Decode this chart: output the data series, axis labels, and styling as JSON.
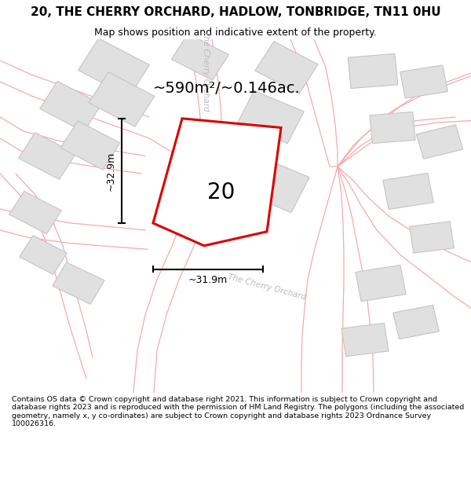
{
  "title": "20, THE CHERRY ORCHARD, HADLOW, TONBRIDGE, TN11 0HU",
  "subtitle": "Map shows position and indicative extent of the property.",
  "footer": "Contains OS data © Crown copyright and database right 2021. This information is subject to Crown copyright and database rights 2023 and is reproduced with the permission of HM Land Registry. The polygons (including the associated geometry, namely x, y co-ordinates) are subject to Crown copyright and database rights 2023 Ordnance Survey 100026316.",
  "area_label": "~590m²/~0.146ac.",
  "plot_number": "20",
  "dim_horizontal": "~31.9m",
  "dim_vertical": "~32.9m",
  "road_label_top": "The Cherry Orchard",
  "road_label_bottom": "The Cherry Orchard",
  "background_color": "#ffffff",
  "plot_color": "#dd0000",
  "plot_fill": "#ffffff",
  "building_color": "#e0e0e0",
  "building_edge": "#c0c0c0",
  "road_line_color": "#f5aaaa",
  "road_label_color": "#bbbbbb",
  "title_fontsize": 11,
  "subtitle_fontsize": 9,
  "area_fontsize": 14,
  "plot_num_fontsize": 20,
  "dim_fontsize": 9
}
